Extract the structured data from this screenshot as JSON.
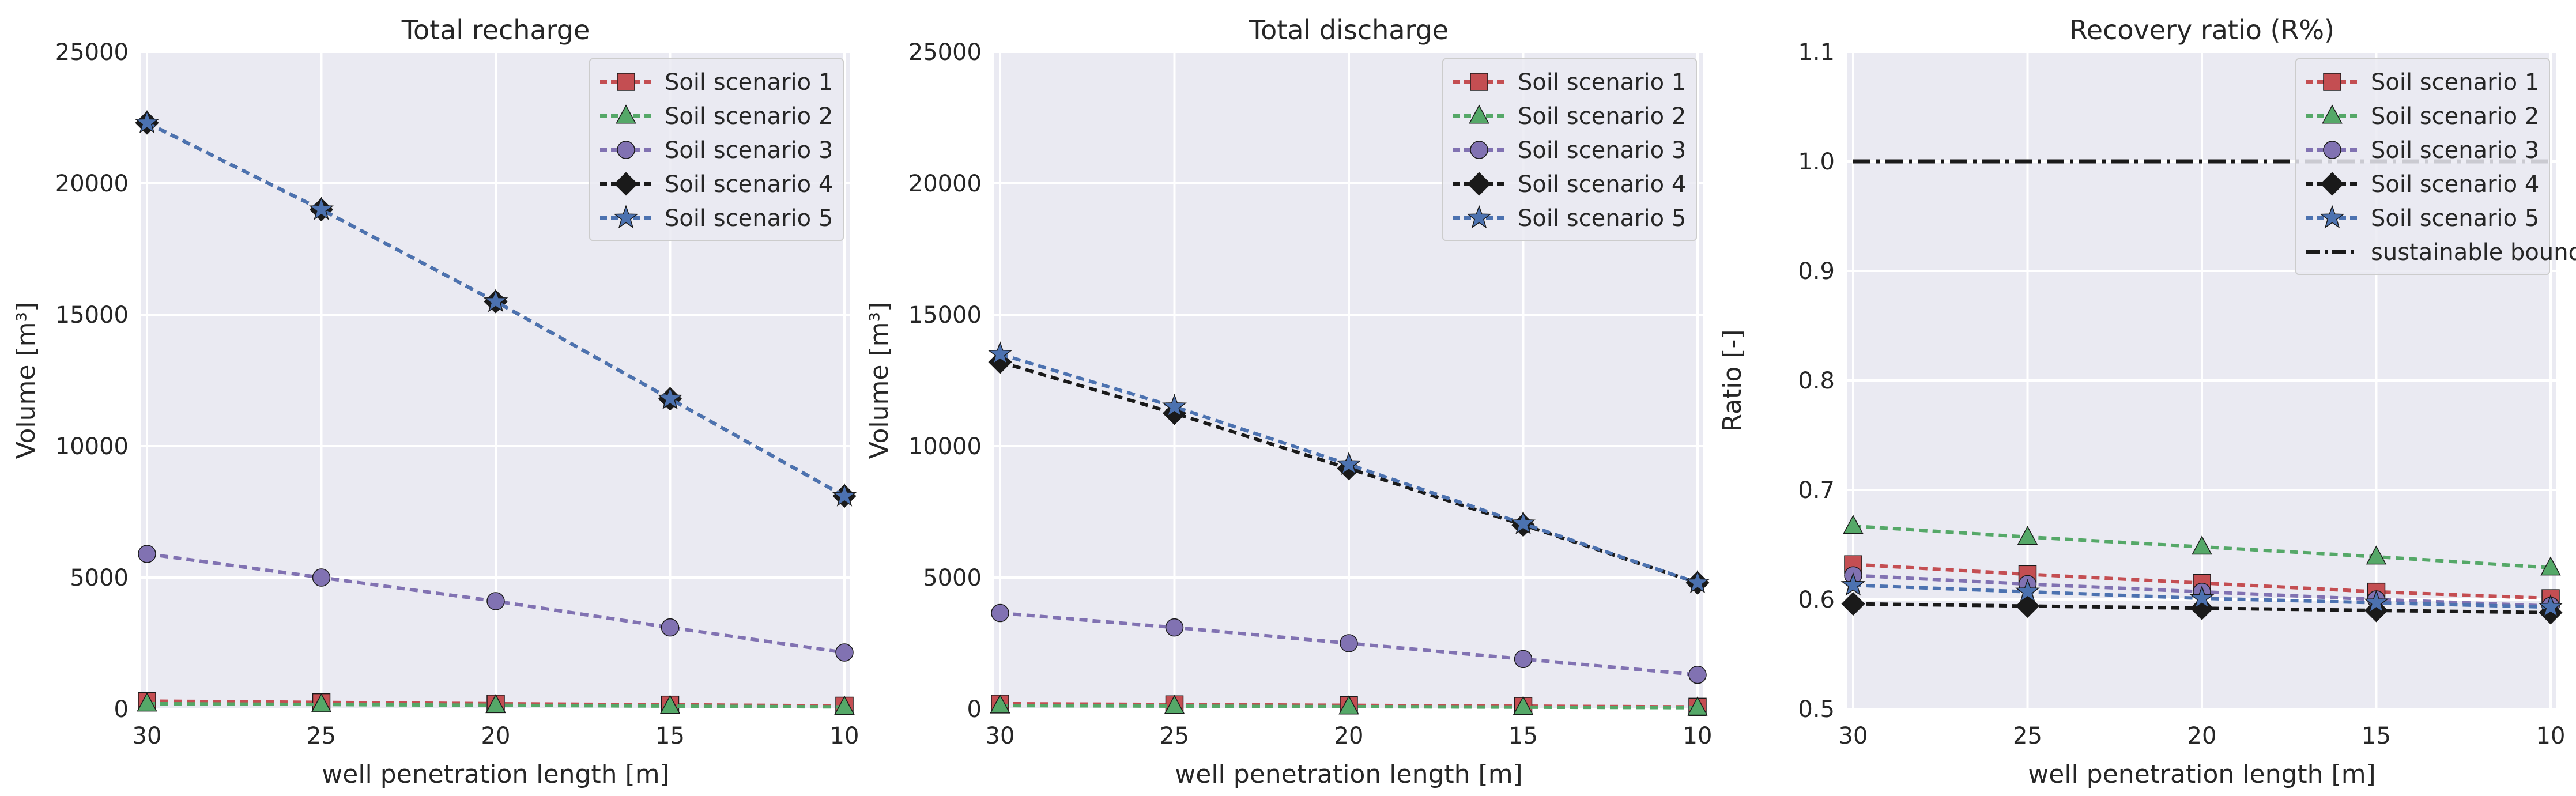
{
  "chart_data": [
    {
      "type": "line",
      "title": "Total recharge",
      "xlabel": "well penetration length [m]",
      "ylabel": "Volume [m³]",
      "x": [
        30,
        25,
        20,
        15,
        10
      ],
      "xticks": [
        "30",
        "25",
        "20",
        "15",
        "10"
      ],
      "xlim": [
        30,
        10
      ],
      "ylim": [
        0,
        25000
      ],
      "yticks": [
        "0",
        "5000",
        "10000",
        "15000",
        "20000",
        "25000"
      ],
      "grid": true,
      "legend_position": "top-right",
      "series": [
        {
          "name": "Soil scenario 1",
          "color": "#c44e52",
          "marker": "square",
          "values": [
            300,
            250,
            200,
            160,
            120
          ]
        },
        {
          "name": "Soil scenario 2",
          "color": "#55a868",
          "marker": "triangle",
          "values": [
            200,
            170,
            140,
            110,
            80
          ]
        },
        {
          "name": "Soil scenario 3",
          "color": "#8172b2",
          "marker": "circle",
          "values": [
            5900,
            5000,
            4100,
            3100,
            2150
          ]
        },
        {
          "name": "Soil scenario 4",
          "color": "#1a1a1a",
          "marker": "diamond",
          "values": [
            22300,
            19000,
            15500,
            11800,
            8100
          ]
        },
        {
          "name": "Soil scenario 5",
          "color": "#4c72b0",
          "marker": "star",
          "values": [
            22300,
            19000,
            15500,
            11800,
            8100
          ]
        }
      ]
    },
    {
      "type": "line",
      "title": "Total discharge",
      "xlabel": "well penetration length [m]",
      "ylabel": "Volume [m³]",
      "x": [
        30,
        25,
        20,
        15,
        10
      ],
      "xticks": [
        "30",
        "25",
        "20",
        "15",
        "10"
      ],
      "xlim": [
        30,
        10
      ],
      "ylim": [
        0,
        25000
      ],
      "yticks": [
        "0",
        "5000",
        "10000",
        "15000",
        "20000",
        "25000"
      ],
      "grid": true,
      "legend_position": "top-right",
      "series": [
        {
          "name": "Soil scenario 1",
          "color": "#c44e52",
          "marker": "square",
          "values": [
            200,
            170,
            140,
            110,
            80
          ]
        },
        {
          "name": "Soil scenario 2",
          "color": "#55a868",
          "marker": "triangle",
          "values": [
            130,
            110,
            90,
            70,
            50
          ]
        },
        {
          "name": "Soil scenario 3",
          "color": "#8172b2",
          "marker": "circle",
          "values": [
            3650,
            3100,
            2500,
            1900,
            1300
          ]
        },
        {
          "name": "Soil scenario 4",
          "color": "#1a1a1a",
          "marker": "diamond",
          "values": [
            13200,
            11250,
            9150,
            7000,
            4800
          ]
        },
        {
          "name": "Soil scenario 5",
          "color": "#4c72b0",
          "marker": "star",
          "values": [
            13500,
            11500,
            9300,
            7050,
            4800
          ]
        }
      ]
    },
    {
      "type": "line",
      "title": "Recovery ratio (R%)",
      "xlabel": "well penetration length [m]",
      "ylabel": "Ratio [-]",
      "x": [
        30,
        25,
        20,
        15,
        10
      ],
      "xticks": [
        "30",
        "25",
        "20",
        "15",
        "10"
      ],
      "xlim": [
        30,
        10
      ],
      "ylim": [
        0.5,
        1.1
      ],
      "yticks": [
        "0.5",
        "0.6",
        "0.7",
        "0.8",
        "0.9",
        "1.0",
        "1.1"
      ],
      "grid": true,
      "legend_position": "top-right",
      "series": [
        {
          "name": "Soil scenario 1",
          "color": "#c44e52",
          "marker": "square",
          "values": [
            0.632,
            0.623,
            0.615,
            0.607,
            0.601
          ]
        },
        {
          "name": "Soil scenario 2",
          "color": "#55a868",
          "marker": "triangle",
          "values": [
            0.667,
            0.657,
            0.648,
            0.639,
            0.629
          ]
        },
        {
          "name": "Soil scenario 3",
          "color": "#8172b2",
          "marker": "circle",
          "values": [
            0.622,
            0.614,
            0.607,
            0.6,
            0.594
          ]
        },
        {
          "name": "Soil scenario 4",
          "color": "#1a1a1a",
          "marker": "diamond",
          "values": [
            0.596,
            0.594,
            0.592,
            0.59,
            0.588
          ]
        },
        {
          "name": "Soil scenario 5",
          "color": "#4c72b0",
          "marker": "star",
          "values": [
            0.613,
            0.607,
            0.601,
            0.597,
            0.593
          ]
        }
      ],
      "reference_lines": [
        {
          "name": "sustainable boundary",
          "color": "#1a1a1a",
          "style": "dash-dot",
          "value": 1.0
        }
      ]
    }
  ]
}
